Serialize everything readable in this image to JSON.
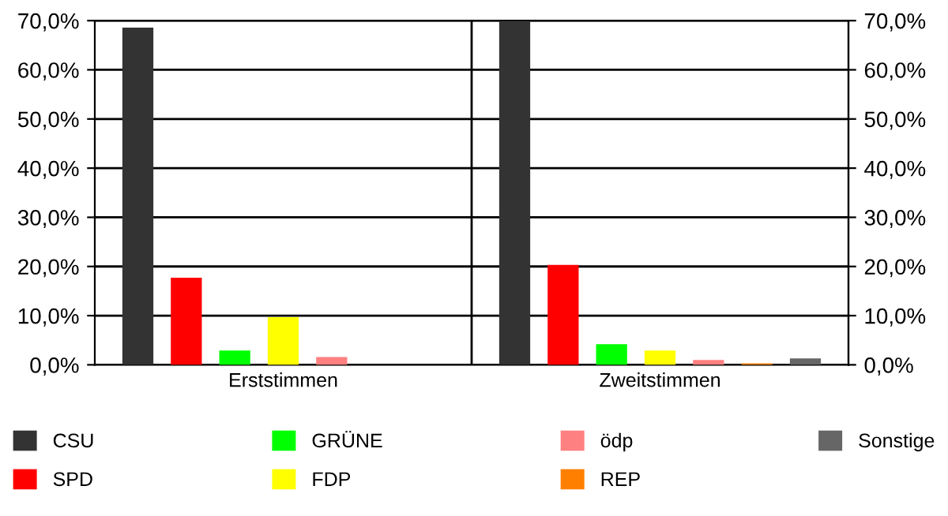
{
  "chart_data": {
    "type": "bar",
    "categories": [
      "Erststimmen",
      "Zweitstimmen"
    ],
    "series": [
      {
        "name": "CSU",
        "color": "#333333",
        "values": [
          68.6,
          70.0
        ]
      },
      {
        "name": "SPD",
        "color": "#ff0000",
        "values": [
          17.7,
          20.3
        ]
      },
      {
        "name": "GRÜNE",
        "color": "#00ff00",
        "values": [
          2.9,
          4.2
        ]
      },
      {
        "name": "FDP",
        "color": "#ffff00",
        "values": [
          9.7,
          2.9
        ]
      },
      {
        "name": "ödp",
        "color": "#ff8080",
        "values": [
          1.6,
          1.0
        ]
      },
      {
        "name": "REP",
        "color": "#ff8000",
        "values": [
          null,
          0.3
        ]
      },
      {
        "name": "Sonstige",
        "color": "#666666",
        "values": [
          null,
          1.3
        ]
      }
    ],
    "ylim": [
      0,
      70
    ],
    "yticks": [
      {
        "value": 0,
        "label": "0,0%"
      },
      {
        "value": 10,
        "label": "10,0%"
      },
      {
        "value": 20,
        "label": "20,0%"
      },
      {
        "value": 30,
        "label": "30,0%"
      },
      {
        "value": 40,
        "label": "40,0%"
      },
      {
        "value": 50,
        "label": "50,0%"
      },
      {
        "value": 60,
        "label": "60,0%"
      },
      {
        "value": 70,
        "label": "70,0%"
      }
    ],
    "y2lim": [
      0,
      70
    ],
    "y2ticks": [
      {
        "value": 0,
        "label": "0,0%"
      },
      {
        "value": 10,
        "label": "10,0%"
      },
      {
        "value": 20,
        "label": "20,0%"
      },
      {
        "value": 30,
        "label": "30,0%"
      },
      {
        "value": 40,
        "label": "40,0%"
      },
      {
        "value": 50,
        "label": "50,0%"
      },
      {
        "value": 60,
        "label": "60,0%"
      },
      {
        "value": 70,
        "label": "70,0%"
      }
    ],
    "grid": "y",
    "legend": "bottom"
  }
}
